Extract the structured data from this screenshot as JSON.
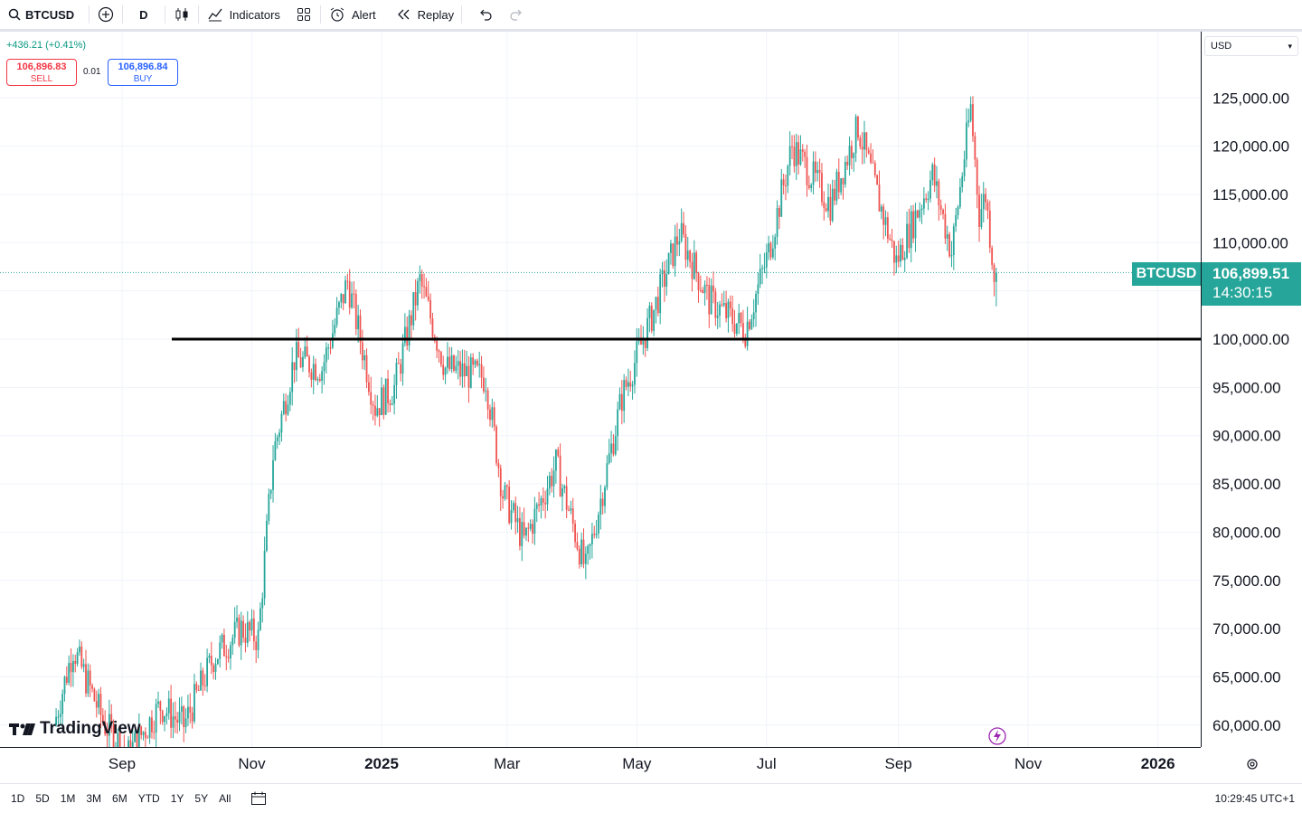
{
  "toolbar": {
    "symbol": "BTCUSD",
    "interval": "D",
    "indicators_label": "Indicators",
    "alert_label": "Alert",
    "replay_label": "Replay"
  },
  "legend": {
    "change": "+436.21 (+0.41%)",
    "sell_price": "106,896.83",
    "sell_label": "SELL",
    "spread": "0.01",
    "buy_price": "106,896.84",
    "buy_label": "BUY"
  },
  "currency": "USD",
  "last_price": {
    "symbol": "BTCUSD",
    "price": "106,899.51",
    "countdown": "14:30:15"
  },
  "price_axis": {
    "ticks": [
      "125,000.00",
      "120,000.00",
      "115,000.00",
      "110,000.00",
      "100,000.00",
      "95,000.00",
      "90,000.00",
      "85,000.00",
      "80,000.00",
      "75,000.00",
      "70,000.00",
      "65,000.00",
      "60,000.00"
    ]
  },
  "time_axis": {
    "ticks": [
      {
        "label": "Sep",
        "bold": false
      },
      {
        "label": "Nov",
        "bold": false
      },
      {
        "label": "2025",
        "bold": true
      },
      {
        "label": "Mar",
        "bold": false
      },
      {
        "label": "May",
        "bold": false
      },
      {
        "label": "Jul",
        "bold": false
      },
      {
        "label": "Sep",
        "bold": false
      },
      {
        "label": "Nov",
        "bold": false
      },
      {
        "label": "2026",
        "bold": true
      }
    ]
  },
  "bottombar": {
    "ranges": [
      "1D",
      "5D",
      "1M",
      "3M",
      "6M",
      "YTD",
      "1Y",
      "5Y",
      "All"
    ],
    "clock": "10:29:45 UTC+1"
  },
  "logo": "TradingView",
  "colors": {
    "up": "#26a69a",
    "down": "#ef5350",
    "sell": "#f23645",
    "buy": "#2962ff",
    "hline": "#000000"
  },
  "chart_data": {
    "type": "candlestick",
    "symbol": "BTCUSD",
    "interval": "D",
    "ylim": [
      58000,
      130000
    ],
    "horizontal_line": 100000,
    "last_price": 106899.51,
    "anchors": [
      {
        "date": "2024-08-01",
        "price": 60000
      },
      {
        "date": "2024-08-10",
        "price": 68000
      },
      {
        "date": "2024-08-25",
        "price": 60000
      },
      {
        "date": "2024-09-05",
        "price": 57000
      },
      {
        "date": "2024-09-20",
        "price": 62000
      },
      {
        "date": "2024-10-01",
        "price": 60000
      },
      {
        "date": "2024-10-15",
        "price": 67000
      },
      {
        "date": "2024-10-28",
        "price": 70000
      },
      {
        "date": "2024-11-05",
        "price": 69000
      },
      {
        "date": "2024-11-12",
        "price": 88000
      },
      {
        "date": "2024-11-22",
        "price": 98000
      },
      {
        "date": "2024-12-05",
        "price": 97000
      },
      {
        "date": "2024-12-17",
        "price": 106000
      },
      {
        "date": "2024-12-30",
        "price": 93000
      },
      {
        "date": "2025-01-08",
        "price": 95000
      },
      {
        "date": "2025-01-20",
        "price": 106000
      },
      {
        "date": "2025-02-01",
        "price": 97000
      },
      {
        "date": "2025-02-20",
        "price": 96000
      },
      {
        "date": "2025-02-28",
        "price": 84000
      },
      {
        "date": "2025-03-10",
        "price": 79000
      },
      {
        "date": "2025-03-25",
        "price": 87000
      },
      {
        "date": "2025-04-08",
        "price": 76000
      },
      {
        "date": "2025-04-25",
        "price": 94000
      },
      {
        "date": "2025-05-10",
        "price": 103000
      },
      {
        "date": "2025-05-22",
        "price": 111000
      },
      {
        "date": "2025-06-05",
        "price": 104000
      },
      {
        "date": "2025-06-22",
        "price": 101000
      },
      {
        "date": "2025-07-03",
        "price": 109000
      },
      {
        "date": "2025-07-14",
        "price": 120000
      },
      {
        "date": "2025-08-01",
        "price": 114000
      },
      {
        "date": "2025-08-14",
        "price": 122000
      },
      {
        "date": "2025-09-01",
        "price": 108000
      },
      {
        "date": "2025-09-18",
        "price": 117000
      },
      {
        "date": "2025-09-27",
        "price": 109000
      },
      {
        "date": "2025-10-06",
        "price": 124000
      },
      {
        "date": "2025-10-10",
        "price": 113000
      },
      {
        "date": "2025-10-13",
        "price": 115000
      },
      {
        "date": "2025-10-17",
        "price": 106900
      }
    ]
  }
}
